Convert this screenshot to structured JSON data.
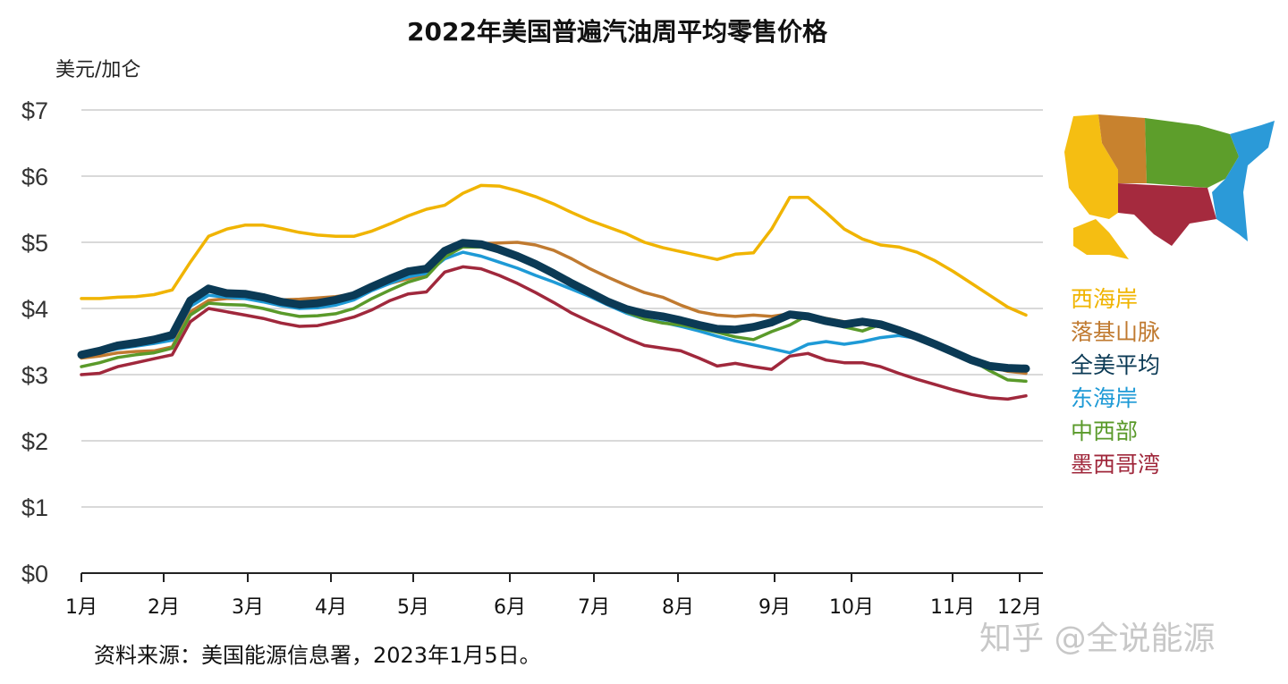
{
  "chart_data": {
    "type": "line",
    "title": "2022年美国普遍汽油周平均零售价格",
    "ylabel": "美元/加仑",
    "xlabel": "",
    "ylim": [
      0,
      7
    ],
    "yticks": [
      "$0",
      "$1",
      "$2",
      "$3",
      "$4",
      "$5",
      "$6",
      "$7"
    ],
    "xticks": [
      "1月",
      "2月",
      "3月",
      "4月",
      "5月",
      "6月",
      "7月",
      "8月",
      "9月",
      "10月",
      "11月",
      "12月"
    ],
    "grid": true,
    "legend_position": "right",
    "x_unit": "周 (2022年, 每周一个数据点)",
    "series": [
      {
        "name": "西海岸",
        "color": "#f0b400",
        "values": [
          4.15,
          4.15,
          4.17,
          4.18,
          4.21,
          4.28,
          4.7,
          5.09,
          5.2,
          5.26,
          5.26,
          5.21,
          5.15,
          5.11,
          5.09,
          5.09,
          5.17,
          5.28,
          5.4,
          5.5,
          5.56,
          5.74,
          5.86,
          5.85,
          5.78,
          5.69,
          5.58,
          5.45,
          5.33,
          5.23,
          5.13,
          5.0,
          4.92,
          4.86,
          4.8,
          4.74,
          4.82,
          4.84,
          5.2,
          5.68,
          5.68,
          5.45,
          5.2,
          5.05,
          4.96,
          4.93,
          4.85,
          4.72,
          4.56,
          4.38,
          4.2,
          4.02,
          3.9
        ]
      },
      {
        "name": "落基山脉",
        "color": "#c07a30",
        "values": [
          3.25,
          3.28,
          3.33,
          3.35,
          3.36,
          3.42,
          3.95,
          4.12,
          4.15,
          4.15,
          4.14,
          4.13,
          4.14,
          4.16,
          4.18,
          4.22,
          4.3,
          4.38,
          4.45,
          4.52,
          4.8,
          4.95,
          4.98,
          4.99,
          5.0,
          4.96,
          4.88,
          4.75,
          4.6,
          4.47,
          4.35,
          4.24,
          4.17,
          4.05,
          3.95,
          3.9,
          3.88,
          3.9,
          3.88,
          3.92,
          3.9,
          3.85,
          3.8,
          3.77,
          3.72,
          3.66,
          3.56,
          3.45,
          3.33,
          3.22,
          3.12,
          3.05,
          3.02
        ]
      },
      {
        "name": "东海岸",
        "color": "#1e9ad6",
        "values": [
          3.28,
          3.33,
          3.39,
          3.43,
          3.47,
          3.52,
          4.03,
          4.2,
          4.17,
          4.15,
          4.1,
          4.04,
          4.0,
          4.01,
          4.05,
          4.13,
          4.27,
          4.38,
          4.48,
          4.53,
          4.75,
          4.85,
          4.79,
          4.7,
          4.61,
          4.5,
          4.4,
          4.29,
          4.18,
          4.05,
          3.93,
          3.84,
          3.79,
          3.73,
          3.66,
          3.58,
          3.51,
          3.45,
          3.39,
          3.33,
          3.46,
          3.5,
          3.46,
          3.5,
          3.56,
          3.59,
          3.55,
          3.44,
          3.32,
          3.2,
          3.1,
          3.08,
          3.08
        ]
      },
      {
        "name": "中西部",
        "color": "#5a9a2a",
        "values": [
          3.12,
          3.18,
          3.26,
          3.3,
          3.33,
          3.4,
          3.9,
          4.08,
          4.06,
          4.05,
          4.0,
          3.93,
          3.88,
          3.89,
          3.92,
          4.0,
          4.15,
          4.28,
          4.4,
          4.48,
          4.78,
          4.93,
          4.93,
          4.86,
          4.76,
          4.65,
          4.52,
          4.4,
          4.25,
          4.1,
          3.95,
          3.84,
          3.78,
          3.75,
          3.7,
          3.64,
          3.57,
          3.53,
          3.65,
          3.75,
          3.9,
          3.82,
          3.72,
          3.66,
          3.76,
          3.7,
          3.6,
          3.48,
          3.36,
          3.22,
          3.06,
          2.92,
          2.9
        ]
      },
      {
        "name": "墨西哥湾",
        "color": "#a0283c",
        "values": [
          3.0,
          3.02,
          3.12,
          3.18,
          3.24,
          3.3,
          3.8,
          4.0,
          3.95,
          3.9,
          3.85,
          3.78,
          3.73,
          3.74,
          3.8,
          3.87,
          3.98,
          4.12,
          4.22,
          4.25,
          4.55,
          4.63,
          4.6,
          4.5,
          4.38,
          4.24,
          4.09,
          3.93,
          3.8,
          3.68,
          3.55,
          3.44,
          3.4,
          3.36,
          3.25,
          3.13,
          3.17,
          3.12,
          3.08,
          3.28,
          3.32,
          3.22,
          3.18,
          3.18,
          3.12,
          3.02,
          2.93,
          2.85,
          2.77,
          2.7,
          2.65,
          2.63,
          2.68
        ]
      },
      {
        "name": "全美平均",
        "color": "#0b3a55",
        "values": [
          3.3,
          3.36,
          3.44,
          3.48,
          3.53,
          3.6,
          4.12,
          4.3,
          4.23,
          4.22,
          4.17,
          4.1,
          4.06,
          4.08,
          4.13,
          4.2,
          4.33,
          4.45,
          4.56,
          4.6,
          4.87,
          4.99,
          4.97,
          4.89,
          4.79,
          4.67,
          4.53,
          4.38,
          4.24,
          4.1,
          3.99,
          3.92,
          3.88,
          3.82,
          3.75,
          3.69,
          3.68,
          3.72,
          3.79,
          3.91,
          3.88,
          3.81,
          3.76,
          3.8,
          3.76,
          3.67,
          3.57,
          3.46,
          3.34,
          3.22,
          3.13,
          3.1,
          3.09
        ]
      }
    ],
    "legend_order": [
      "西海岸",
      "落基山脉",
      "全美平均",
      "东海岸",
      "中西部",
      "墨西哥湾"
    ],
    "source": "资料来源：美国能源信息署，2023年1月5日。"
  },
  "watermark": "知乎 @全说能源"
}
